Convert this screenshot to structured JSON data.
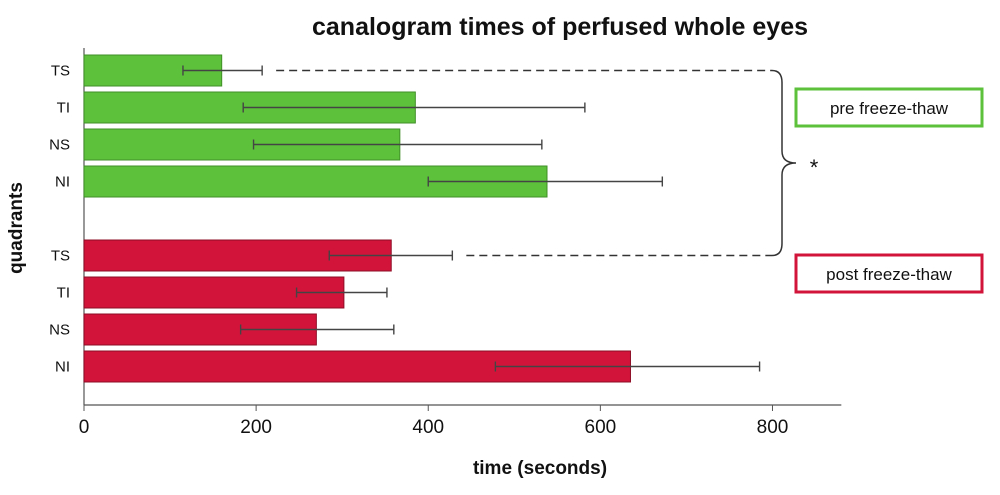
{
  "chart_data": {
    "type": "bar",
    "orientation": "horizontal",
    "title": "canalogram times of perfused whole eyes",
    "xlabel": "time (seconds)",
    "ylabel": "quadrants",
    "xlim": [
      0,
      880
    ],
    "xticks": [
      0,
      200,
      400,
      600,
      800
    ],
    "grid": false,
    "significance_marker": "*",
    "series": [
      {
        "name": "pre freeze-thaw",
        "color": "#5dc13b",
        "border": "#3f8f27",
        "categories": [
          "TS",
          "TI",
          "NS",
          "NI"
        ],
        "values": [
          160,
          385,
          367,
          538
        ],
        "error_low": [
          115,
          185,
          197,
          400
        ],
        "error_high": [
          207,
          582,
          532,
          672
        ]
      },
      {
        "name": "post freeze-thaw",
        "color": "#d2143a",
        "border": "#8e0d26",
        "categories": [
          "TS",
          "TI",
          "NS",
          "NI"
        ],
        "values": [
          357,
          302,
          270,
          635
        ],
        "error_low": [
          285,
          247,
          182,
          478
        ],
        "error_high": [
          428,
          352,
          360,
          785
        ]
      }
    ]
  }
}
